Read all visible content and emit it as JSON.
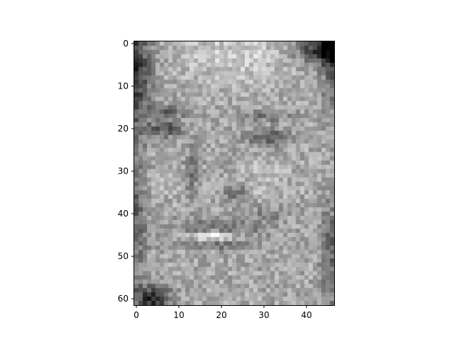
{
  "figure": {
    "background": "#ffffff"
  },
  "image": {
    "kind": "grayscale face photograph rendered as heatmap",
    "colormap": "gray",
    "shape": [
      62,
      47
    ]
  },
  "axes": {
    "xlim": [
      -0.5,
      46.5
    ],
    "ylim": [
      61.5,
      -0.5
    ],
    "x_ticks": [
      0,
      10,
      20,
      30,
      40
    ],
    "y_ticks": [
      0,
      10,
      20,
      30,
      40,
      50,
      60
    ],
    "x_tick_labels": [
      "0",
      "10",
      "20",
      "30",
      "40"
    ],
    "y_tick_labels": [
      "0",
      "10",
      "20",
      "30",
      "40",
      "50",
      "60"
    ]
  },
  "chart_data": {
    "type": "heatmap",
    "title": "",
    "xlabel": "",
    "ylabel": "",
    "rows": 62,
    "cols": 47,
    "xlim": [
      -0.5,
      46.5
    ],
    "ylim": [
      61.5,
      -0.5
    ],
    "colormap": "gray",
    "grid": false,
    "legend": "none"
  }
}
